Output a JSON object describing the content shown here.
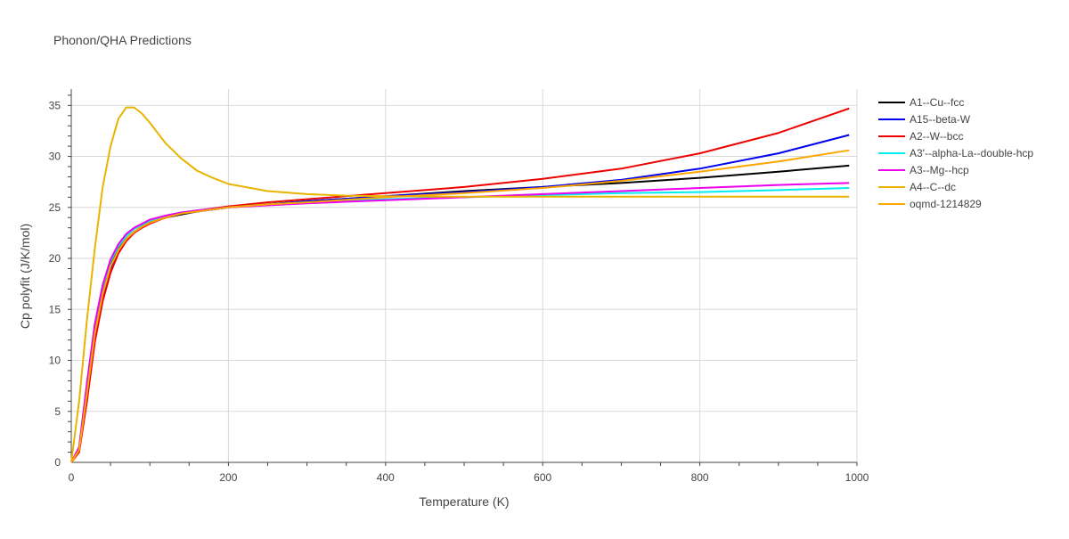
{
  "chart_data": {
    "type": "line",
    "title": "Phonon/QHA Predictions",
    "xlabel": "Temperature (K)",
    "ylabel": "Cp polyfit (J/K/mol)",
    "xlim": [
      0,
      1000
    ],
    "ylim": [
      0,
      36.6
    ],
    "xticks": [
      0,
      200,
      400,
      600,
      800,
      1000
    ],
    "yticks": [
      0,
      5,
      10,
      15,
      20,
      25,
      30,
      35
    ],
    "grid": true,
    "legend_position": "top-right",
    "series": [
      {
        "name": "A1--Cu--fcc",
        "color": "#000000",
        "x": [
          0,
          10,
          20,
          30,
          40,
          50,
          60,
          70,
          80,
          90,
          100,
          120,
          140,
          160,
          200,
          250,
          300,
          400,
          500,
          600,
          700,
          800,
          900,
          990
        ],
        "y": [
          0,
          1.3,
          7.0,
          12.8,
          16.6,
          19.3,
          20.9,
          21.9,
          22.6,
          23.1,
          23.5,
          24.0,
          24.3,
          24.6,
          25.0,
          25.3,
          25.6,
          26.1,
          26.6,
          27.0,
          27.4,
          27.9,
          28.5,
          29.1
        ]
      },
      {
        "name": "A15--beta-W",
        "color": "#0000ee",
        "x": [
          0,
          10,
          20,
          30,
          40,
          50,
          60,
          70,
          80,
          90,
          100,
          120,
          140,
          160,
          200,
          250,
          300,
          400,
          500,
          600,
          700,
          800,
          900,
          990
        ],
        "y": [
          0,
          1.2,
          6.5,
          12.2,
          16.2,
          19.0,
          20.8,
          21.9,
          22.6,
          23.1,
          23.5,
          24.0,
          24.4,
          24.6,
          25.0,
          25.3,
          25.6,
          26.1,
          26.5,
          27.0,
          27.7,
          28.8,
          30.3,
          32.1
        ]
      },
      {
        "name": "A2--W--bcc",
        "color": "#ee0000",
        "x": [
          0,
          10,
          20,
          30,
          40,
          50,
          60,
          70,
          80,
          90,
          100,
          120,
          140,
          160,
          200,
          250,
          300,
          400,
          500,
          600,
          700,
          800,
          900,
          990
        ],
        "y": [
          0,
          1.0,
          6.0,
          11.8,
          15.8,
          18.6,
          20.5,
          21.7,
          22.5,
          23.0,
          23.4,
          24.0,
          24.4,
          24.7,
          25.1,
          25.5,
          25.8,
          26.4,
          27.0,
          27.8,
          28.8,
          30.3,
          32.3,
          34.7
        ]
      },
      {
        "name": "A3'--alpha-La--double-hcp",
        "color": "#00eeee",
        "x": [
          0,
          10,
          20,
          30,
          40,
          50,
          60,
          70,
          80,
          90,
          100,
          120,
          140,
          160,
          200,
          250,
          300,
          400,
          500,
          600,
          700,
          800,
          900,
          990
        ],
        "y": [
          0,
          1.5,
          7.8,
          13.5,
          17.2,
          19.7,
          21.2,
          22.2,
          22.9,
          23.3,
          23.7,
          24.2,
          24.5,
          24.7,
          25.0,
          25.3,
          25.5,
          25.8,
          26.0,
          26.2,
          26.4,
          26.5,
          26.7,
          26.9
        ]
      },
      {
        "name": "A3--Mg--hcp",
        "color": "#ee00ee",
        "x": [
          0,
          10,
          20,
          30,
          40,
          50,
          60,
          70,
          80,
          90,
          100,
          120,
          140,
          160,
          200,
          250,
          300,
          400,
          500,
          600,
          700,
          800,
          900,
          990
        ],
        "y": [
          0,
          1.5,
          7.8,
          13.6,
          17.4,
          19.9,
          21.4,
          22.4,
          23.0,
          23.4,
          23.8,
          24.2,
          24.5,
          24.7,
          25.0,
          25.2,
          25.4,
          25.7,
          26.0,
          26.3,
          26.6,
          26.9,
          27.2,
          27.4
        ]
      },
      {
        "name": "A4--C--dc",
        "color": "#e8b400",
        "x": [
          0,
          10,
          20,
          30,
          40,
          50,
          60,
          70,
          80,
          90,
          100,
          120,
          140,
          160,
          180,
          200,
          250,
          300,
          350,
          400,
          500,
          600,
          700,
          800,
          900,
          990
        ],
        "y": [
          0,
          6.0,
          14.0,
          21.0,
          27.0,
          31.0,
          33.7,
          34.8,
          34.8,
          34.2,
          33.3,
          31.3,
          29.8,
          28.6,
          27.9,
          27.3,
          26.6,
          26.3,
          26.15,
          26.1,
          26.05,
          26.05,
          26.05,
          26.05,
          26.05,
          26.05
        ]
      },
      {
        "name": "oqmd-1214829",
        "color": "#ffa500",
        "x": [
          0,
          10,
          20,
          30,
          40,
          50,
          60,
          70,
          80,
          90,
          100,
          120,
          140,
          160,
          200,
          250,
          300,
          400,
          500,
          600,
          700,
          800,
          900,
          990
        ],
        "y": [
          0,
          1.2,
          6.8,
          12.6,
          16.5,
          19.2,
          20.8,
          21.9,
          22.6,
          23.1,
          23.5,
          24.0,
          24.4,
          24.6,
          25.0,
          25.3,
          25.5,
          26.0,
          26.4,
          26.9,
          27.6,
          28.5,
          29.5,
          30.6
        ]
      }
    ]
  }
}
